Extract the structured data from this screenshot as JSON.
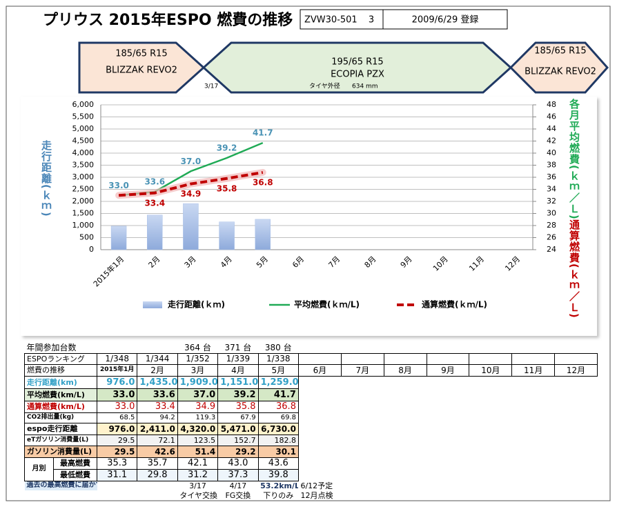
{
  "header": {
    "title": "プリウス 2015年ESPO 燃費の推移",
    "model": "ZVW30-501",
    "number": "3",
    "registered": "2009/6/29 登録"
  },
  "tires": [
    {
      "size": "185/65 R15",
      "name": "BLIZZAK REVO2"
    },
    {
      "size": "195/65 R15",
      "name": "ECOPIA PZX"
    },
    {
      "size": "185/65 R15",
      "name": "BLIZZAK REVO2"
    }
  ],
  "tire_notes": {
    "date": "3/17",
    "label": "タイヤ外径",
    "size": "634 mm"
  },
  "chart_data": {
    "type": "combo",
    "categories": [
      "2015年1月",
      "2月",
      "3月",
      "4月",
      "5月",
      "6月",
      "7月",
      "8月",
      "9月",
      "10月",
      "11月",
      "12月"
    ],
    "series": [
      {
        "name": "走行距離(ｋｍ)",
        "type": "bar",
        "color": "#a9c0e8",
        "values": [
          976,
          1435,
          1909,
          1151,
          1259,
          null,
          null,
          null,
          null,
          null,
          null,
          null
        ]
      },
      {
        "name": "平均燃費(ｋｍ/L)",
        "type": "line",
        "axis": "y2",
        "color": "#1faa55",
        "label_color": "#4a93b5",
        "values": [
          33.0,
          33.6,
          37.0,
          39.2,
          41.7,
          null,
          null,
          null,
          null,
          null,
          null,
          null
        ],
        "value_labels": [
          "33.0",
          "33.6",
          "37.0",
          "39.2",
          "41.7",
          null,
          null,
          null,
          null,
          null,
          null,
          null
        ]
      },
      {
        "name": "通算燃費(ｋｍ/L)",
        "type": "dashed_line",
        "axis": "y2",
        "color": "#c00000",
        "label_color": "#c00000",
        "values": [
          33.0,
          33.4,
          34.9,
          35.8,
          36.8,
          null,
          null,
          null,
          null,
          null,
          null,
          null
        ],
        "value_labels": [
          null,
          "33.4",
          "34.9",
          "35.8",
          "36.8",
          null,
          null,
          null,
          null,
          null,
          null,
          null
        ]
      }
    ],
    "y_label": "走行距離(ｋｍ)",
    "y2_labels": [
      {
        "text": "各月平均燃費(ｋｍ／Ｌ)",
        "color": "#1faa55"
      },
      {
        "text": "通算燃費(ｋｍ／Ｌ)",
        "color": "#c00000"
      }
    ],
    "ylim": [
      0,
      6000
    ],
    "yticks": [
      0,
      500,
      {
        "value": 1000,
        "label": "1,000"
      },
      {
        "value": 1500,
        "label": "1,500"
      },
      {
        "value": 2000,
        "label": "2,000"
      },
      {
        "value": 2500,
        "label": "2,500"
      },
      {
        "value": 3000,
        "label": "3,000"
      },
      {
        "value": 3500,
        "label": "3,500"
      },
      {
        "value": 4000,
        "label": "4,000"
      },
      {
        "value": 4500,
        "label": "4,500"
      },
      {
        "value": 5000,
        "label": "5,000"
      },
      {
        "value": 5500,
        "label": "5,500"
      },
      {
        "value": 6000,
        "label": "6,000"
      }
    ],
    "y2lim": [
      24,
      48
    ],
    "y2ticks": [
      24,
      26,
      28,
      30,
      32,
      34,
      36,
      38,
      40,
      42,
      44,
      46,
      48
    ],
    "grid": true,
    "legend": "bottom"
  },
  "table": {
    "participants": {
      "label": "年間参加台数",
      "values": [
        null,
        null,
        "364 台",
        "371 台",
        "380 台"
      ]
    },
    "rows": [
      {
        "label": "ESPOランキング",
        "cells": [
          "1/348",
          "1/344",
          "1/352",
          "1/339",
          "1/338"
        ]
      },
      {
        "label": "燃費の推移",
        "cells": [
          "2015年1月",
          "2月",
          "3月",
          "4月",
          "5月",
          "6月",
          "7月",
          "8月",
          "9月",
          "10月",
          "11月",
          "12月"
        ]
      },
      {
        "label": "走行距離(km)",
        "cells": [
          "976.0",
          "1,435.0",
          "1,909.0",
          "1,151.0",
          "1,259.0"
        ]
      },
      {
        "label": "平均燃費(km/L)",
        "cells": [
          "33.0",
          "33.6",
          "37.0",
          "39.2",
          "41.7"
        ]
      },
      {
        "label": "通算燃費(km/L)",
        "cells": [
          "33.0",
          "33.4",
          "34.9",
          "35.8",
          "36.8"
        ]
      },
      {
        "label": "CO2排出量(kg)",
        "cells": [
          "68.5",
          "94.2",
          "119.3",
          "67.9",
          "69.8"
        ]
      },
      {
        "label": "espo走行距離",
        "cells": [
          "976.0",
          "2,411.0",
          "4,320.0",
          "5,471.0",
          "6,730.0"
        ]
      },
      {
        "label": "eTガソリン消費量(L)",
        "cells": [
          "29.5",
          "72.1",
          "123.5",
          "152.7",
          "182.8"
        ]
      },
      {
        "label": "ガソリン消費量(L)",
        "cells": [
          "29.5",
          "42.6",
          "51.4",
          "29.2",
          "30.1"
        ]
      }
    ],
    "group": {
      "label": "月別",
      "rows": [
        {
          "label": "最高燃費",
          "cells": [
            "35.3",
            "35.7",
            "42.1",
            "43.0",
            "43.6"
          ]
        },
        {
          "label": "最低燃費",
          "cells": [
            "31.1",
            "29.8",
            "31.2",
            "37.3",
            "39.8"
          ]
        }
      ]
    },
    "footer": {
      "note": "過去の最高燃費に届かず",
      "dates": [
        null,
        null,
        "3/17",
        "4/17",
        "53.2km/L",
        "6/12予定"
      ],
      "events": [
        null,
        null,
        "タイヤ交換",
        "FG交換",
        "下りのみ",
        "12月点検"
      ]
    }
  }
}
